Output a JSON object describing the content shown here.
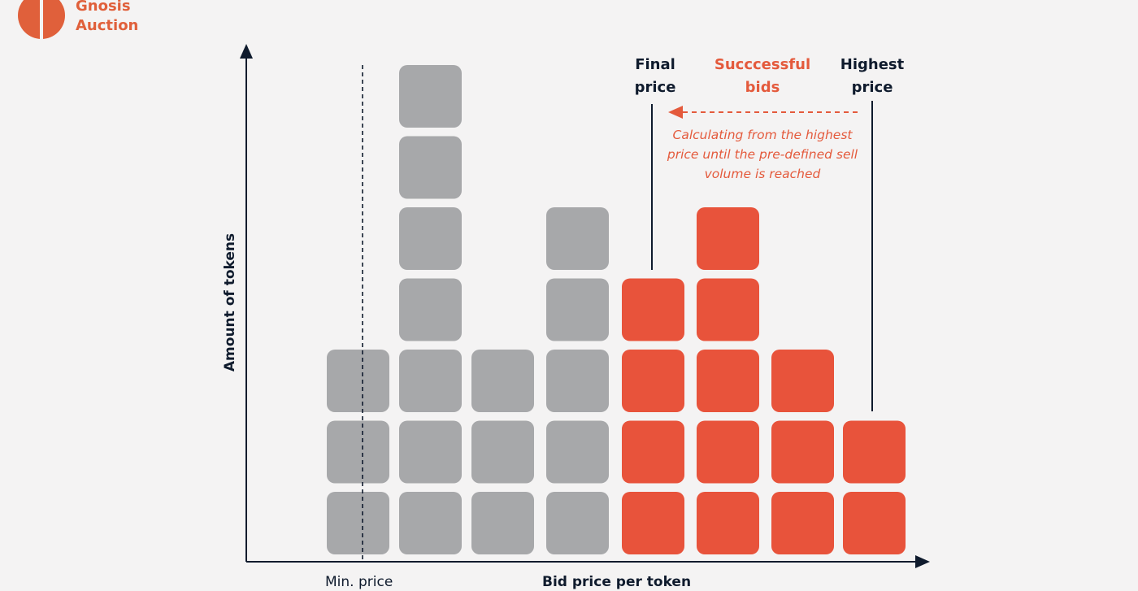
{
  "brand": {
    "line1": "Gnosis",
    "line2": "Auction",
    "color": "#e0603b",
    "logo_icon": "gnosis-logo-icon"
  },
  "labels": {
    "final_price": [
      "Final",
      "price"
    ],
    "successful_bids": [
      "Succcessful",
      "bids"
    ],
    "highest_price": [
      "Highest",
      "price"
    ],
    "note": "Calculating from the highest price until the pre-defined sell volume is reached",
    "y_axis": "Amount of tokens",
    "x_axis": "Bid price per token",
    "min_price": "Min. price"
  },
  "colors": {
    "unsuccessful_bid": "#a7a8aa",
    "successful_bid": "#e8533b",
    "axis": "#0f1b2d",
    "background": "#f4f3f3"
  },
  "bid_columns": [
    {
      "count": 3,
      "successful": false
    },
    {
      "count": 7,
      "successful": false
    },
    {
      "count": 3,
      "successful": false
    },
    {
      "count": 5,
      "successful": false
    },
    {
      "count": 4,
      "successful": true
    },
    {
      "count": 5,
      "successful": true
    },
    {
      "count": 3,
      "successful": true
    },
    {
      "count": 2,
      "successful": true
    }
  ]
}
